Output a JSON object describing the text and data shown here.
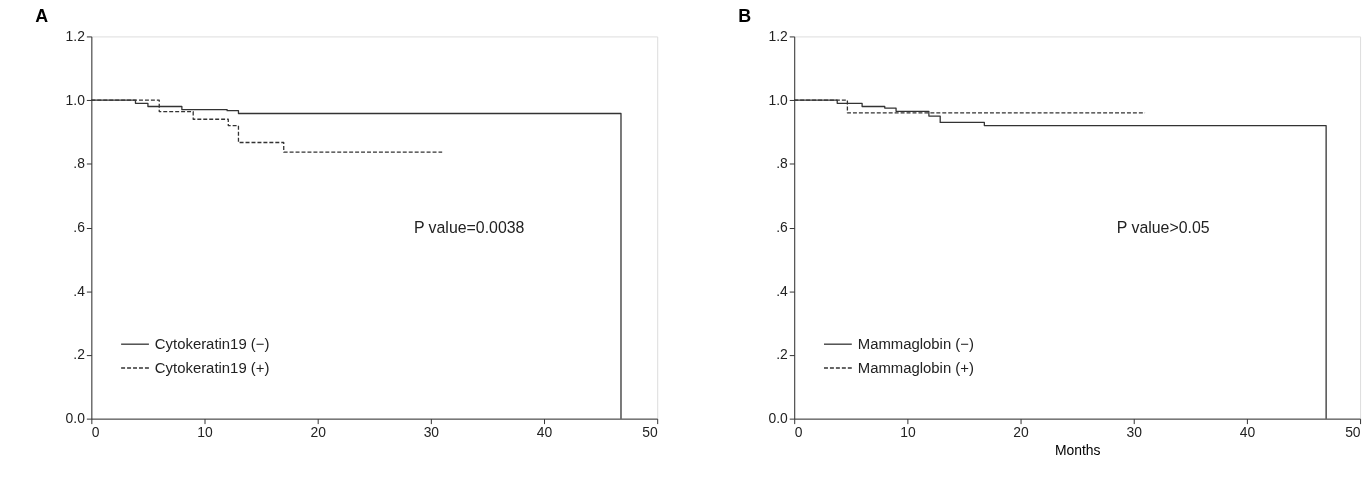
{
  "chart_data": [
    {
      "type": "step",
      "title": "A",
      "xlim": [
        0,
        50
      ],
      "xticks": [
        0,
        10,
        20,
        30,
        40,
        50
      ],
      "ylim": [
        0,
        1.2
      ],
      "yticks": [
        {
          "value": 0,
          "label": "0.0"
        },
        {
          "value": 0.2,
          "label": ".2"
        },
        {
          "value": 0.4,
          "label": ".4"
        },
        {
          "value": 0.6,
          "label": ".6"
        },
        {
          "value": 0.8,
          "label": ".8"
        },
        {
          "value": 1.0,
          "label": "1.0"
        },
        {
          "value": 1.2,
          "label": "1.2"
        }
      ],
      "grid": false,
      "legend": "bottom left",
      "annotations": [
        "P value=0.0038"
      ],
      "series": [
        {
          "name": "Cytokeratin19 (−)",
          "color": "#333333",
          "line_style": "solid",
          "x": [
            0,
            3.9,
            5,
            8,
            12,
            13,
            46.8,
            46.8
          ],
          "values": [
            1.0,
            0.99,
            0.98,
            0.97,
            0.967,
            0.958,
            0.958,
            0
          ]
        },
        {
          "name": "Cytokeratin19 (+)",
          "color": "#333333",
          "line_style": "dashed",
          "x": [
            0,
            6,
            9,
            12.1,
            13,
            17,
            31
          ],
          "values": [
            1.0,
            0.964,
            0.94,
            0.92,
            0.867,
            0.837,
            0.837
          ]
        }
      ]
    },
    {
      "type": "step",
      "title": "B",
      "xlabel": "Months",
      "xlim": [
        0,
        50
      ],
      "xticks": [
        0,
        10,
        20,
        30,
        40,
        50
      ],
      "ylim": [
        0,
        1.2
      ],
      "yticks": [
        {
          "value": 0,
          "label": "0.0"
        },
        {
          "value": 0.2,
          "label": ".2"
        },
        {
          "value": 0.4,
          "label": ".4"
        },
        {
          "value": 0.6,
          "label": ".6"
        },
        {
          "value": 0.8,
          "label": ".8"
        },
        {
          "value": 1.0,
          "label": "1.0"
        },
        {
          "value": 1.2,
          "label": "1.2"
        }
      ],
      "grid": false,
      "legend": "bottom left",
      "annotations": [
        "P value>0.05"
      ],
      "series": [
        {
          "name": "Mammaglobin (−)",
          "color": "#333333",
          "line_style": "solid",
          "x": [
            0,
            3.8,
            6,
            8,
            9,
            11.9,
            12.9,
            16.8,
            47,
            47
          ],
          "values": [
            1.0,
            0.99,
            0.98,
            0.975,
            0.965,
            0.95,
            0.93,
            0.92,
            0.92,
            0
          ]
        },
        {
          "name": "Mammaglobin (+)",
          "color": "#333333",
          "line_style": "dashed",
          "x": [
            0,
            4.7,
            31
          ],
          "values": [
            1.0,
            0.96,
            0.96
          ]
        }
      ]
    }
  ]
}
